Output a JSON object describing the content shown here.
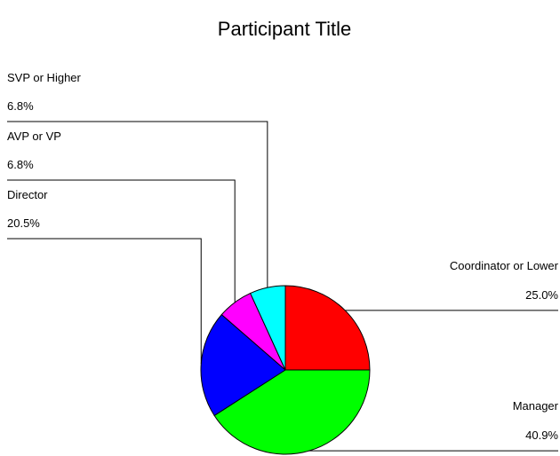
{
  "chart_data": {
    "type": "pie",
    "title": "Participant Title",
    "categories": [
      "Coordinator or Lower",
      "Manager",
      "Director",
      "AVP or VP",
      "SVP or Higher"
    ],
    "values": [
      25,
      40.9,
      20.5,
      6.8,
      6.8
    ],
    "value_labels": [
      "25.0%",
      "40.9%",
      "20.5%",
      "6.8%",
      "6.8%"
    ],
    "colors": [
      "#ff0000",
      "#00ff00",
      "#0000ff",
      "#ff00ff",
      "#00ffff"
    ]
  }
}
